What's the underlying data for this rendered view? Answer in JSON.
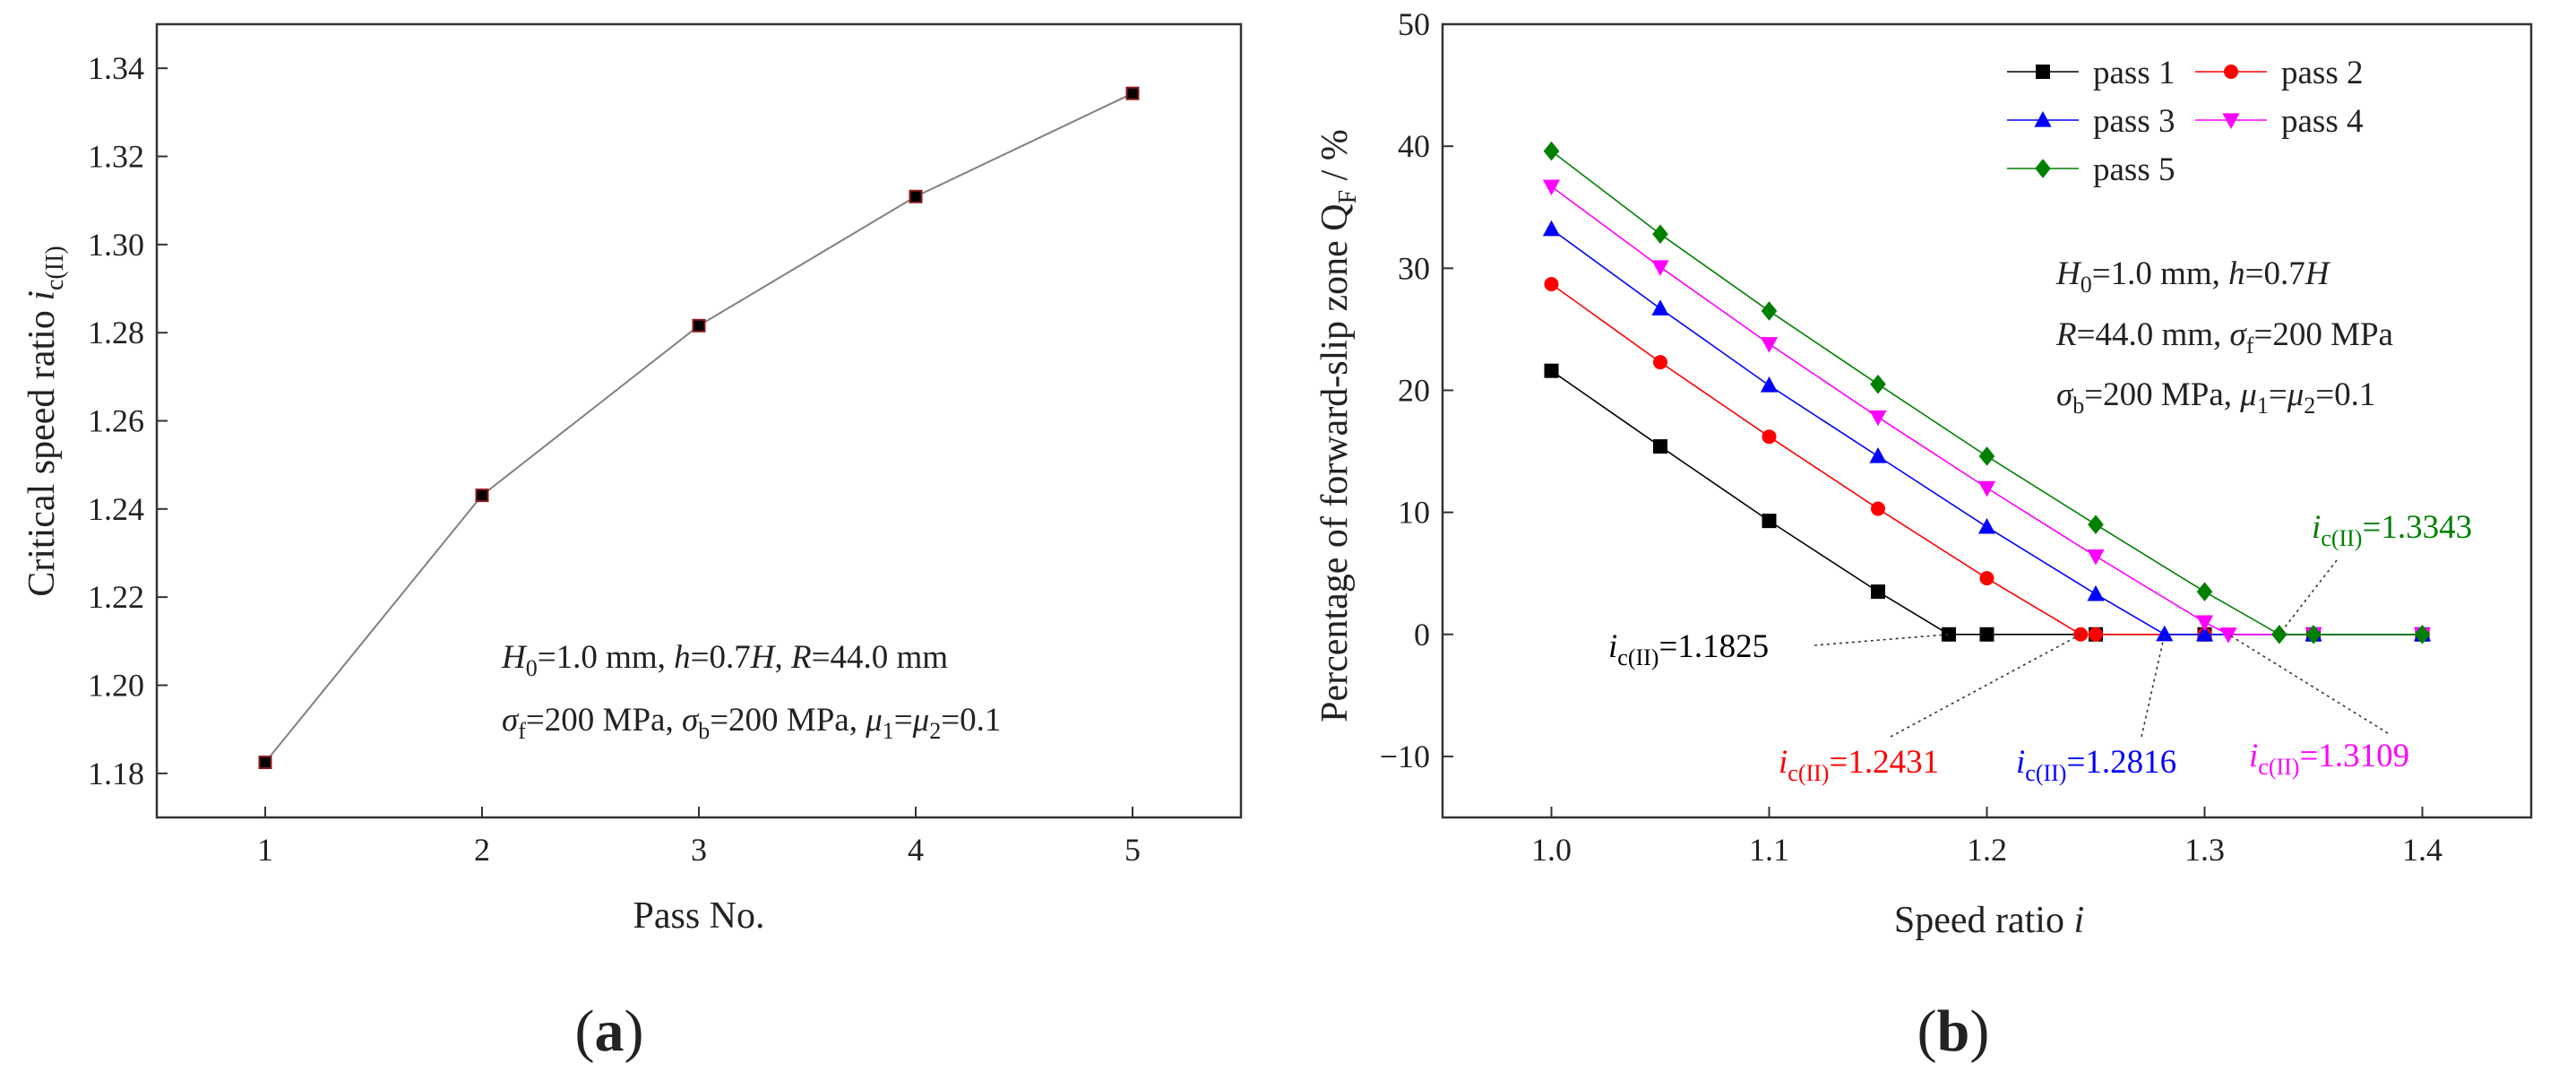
{
  "colors": {
    "pass1": "#000000",
    "pass2": "#ff0000",
    "pass3": "#0000ff",
    "pass4": "#ff00ff",
    "pass5": "#008000",
    "line": "#808080"
  },
  "chart_data": [
    {
      "id": "a",
      "panel_label_open": "(",
      "panel_label_letter": "a",
      "panel_label_close": ")",
      "type": "line",
      "xlabel": "Pass No.",
      "ylabel_main": "Critical speed ratio ",
      "ylabel_ital": "i",
      "ylabel_sub": "c(II)",
      "xlim": [
        0.5,
        5.5
      ],
      "ylim": [
        1.17,
        1.35
      ],
      "xticks": [
        1,
        2,
        3,
        4,
        5
      ],
      "yticks": [
        1.18,
        1.2,
        1.22,
        1.24,
        1.26,
        1.28,
        1.3,
        1.32,
        1.34
      ],
      "ytick_labels": [
        "1.18",
        "1.20",
        "1.22",
        "1.24",
        "1.26",
        "1.28",
        "1.30",
        "1.32",
        "1.34"
      ],
      "x": [
        1,
        2,
        3,
        4,
        5
      ],
      "y": [
        1.1825,
        1.2431,
        1.2816,
        1.3109,
        1.3343
      ],
      "params_line1": [
        {
          "t": "H",
          "it": true
        },
        {
          "t": "0",
          "sub": true
        },
        {
          "t": "=1.0 mm, "
        },
        {
          "t": "h",
          "it": true
        },
        {
          "t": "=0.7"
        },
        {
          "t": "H",
          "it": true
        },
        {
          "t": ", "
        },
        {
          "t": "R",
          "it": true
        },
        {
          "t": "=44.0 mm"
        }
      ],
      "params_line2": [
        {
          "t": "σ",
          "it": true
        },
        {
          "t": "f",
          "sub": true
        },
        {
          "t": "=200 MPa, "
        },
        {
          "t": "σ",
          "it": true
        },
        {
          "t": "b",
          "sub": true
        },
        {
          "t": "=200 MPa, "
        },
        {
          "t": "μ",
          "it": true
        },
        {
          "t": "1",
          "sub": true
        },
        {
          "t": "="
        },
        {
          "t": "μ",
          "it": true
        },
        {
          "t": "2",
          "sub": true
        },
        {
          "t": "=0.1"
        }
      ]
    },
    {
      "id": "b",
      "panel_label_open": "(",
      "panel_label_letter": "b",
      "panel_label_close": ")",
      "type": "line",
      "xlabel_main": "Speed ratio ",
      "xlabel_ital": "i",
      "ylabel_main": "Percentage of forward-slip zone Q",
      "ylabel_sub": "F",
      "ylabel_tail": " / %",
      "xlim": [
        0.95,
        1.45
      ],
      "ylim": [
        -15,
        50
      ],
      "xticks": [
        1.0,
        1.1,
        1.2,
        1.3,
        1.4
      ],
      "xtick_labels": [
        "1.0",
        "1.1",
        "1.2",
        "1.3",
        "1.4"
      ],
      "yticks": [
        -10,
        0,
        10,
        20,
        30,
        40,
        50
      ],
      "ytick_labels": [
        "−10",
        "0",
        "10",
        "20",
        "30",
        "40",
        "50"
      ],
      "series": [
        {
          "name": "pass 1",
          "color_key": "pass1",
          "marker": "square",
          "x": [
            1.0,
            1.05,
            1.1,
            1.15,
            1.1825,
            1.2,
            1.25,
            1.3,
            1.35,
            1.4
          ],
          "y": [
            21.6,
            15.4,
            9.3,
            3.5,
            0,
            0,
            0,
            0,
            0,
            0
          ]
        },
        {
          "name": "pass 2",
          "color_key": "pass2",
          "marker": "circle",
          "x": [
            1.0,
            1.05,
            1.1,
            1.15,
            1.2,
            1.2431,
            1.25,
            1.3,
            1.35,
            1.4
          ],
          "y": [
            28.7,
            22.3,
            16.2,
            10.3,
            4.6,
            0,
            0,
            0,
            0,
            0
          ]
        },
        {
          "name": "pass 3",
          "color_key": "pass3",
          "marker": "triangle-up",
          "x": [
            1.0,
            1.05,
            1.1,
            1.15,
            1.2,
            1.25,
            1.2816,
            1.3,
            1.35,
            1.4
          ],
          "y": [
            33.2,
            26.7,
            20.4,
            14.6,
            8.8,
            3.3,
            0,
            0,
            0,
            0
          ]
        },
        {
          "name": "pass 4",
          "color_key": "pass4",
          "marker": "triangle-down",
          "x": [
            1.0,
            1.05,
            1.1,
            1.15,
            1.2,
            1.25,
            1.3,
            1.3109,
            1.35,
            1.4
          ],
          "y": [
            36.7,
            30.1,
            23.8,
            17.8,
            12.0,
            6.4,
            1.0,
            0,
            0,
            0
          ]
        },
        {
          "name": "pass 5",
          "color_key": "pass5",
          "marker": "diamond",
          "x": [
            1.0,
            1.05,
            1.1,
            1.15,
            1.2,
            1.25,
            1.3,
            1.3343,
            1.35,
            1.4
          ],
          "y": [
            39.6,
            32.8,
            26.5,
            20.5,
            14.6,
            9.0,
            3.5,
            0,
            0,
            0
          ]
        }
      ],
      "params_line1": [
        {
          "t": "H",
          "it": true
        },
        {
          "t": "0",
          "sub": true
        },
        {
          "t": "=1.0 mm, "
        },
        {
          "t": "h",
          "it": true
        },
        {
          "t": "=0.7"
        },
        {
          "t": "H",
          "it": true
        }
      ],
      "params_line2": [
        {
          "t": "R",
          "it": true
        },
        {
          "t": "=44.0 mm, "
        },
        {
          "t": "σ",
          "it": true
        },
        {
          "t": "f",
          "sub": true
        },
        {
          "t": "=200 MPa"
        }
      ],
      "params_line3": [
        {
          "t": "σ",
          "it": true
        },
        {
          "t": "b",
          "sub": true
        },
        {
          "t": "=200 MPa, "
        },
        {
          "t": "μ",
          "it": true
        },
        {
          "t": "1",
          "sub": true
        },
        {
          "t": "="
        },
        {
          "t": "μ",
          "it": true
        },
        {
          "t": "2",
          "sub": true
        },
        {
          "t": "=0.1"
        }
      ],
      "annotations": [
        {
          "i_sym": "i",
          "sub": "c(II)",
          "value": "=1.1825",
          "color_key": "pass1",
          "point": [
            1.1825,
            0
          ]
        },
        {
          "i_sym": "i",
          "sub": "c(II)",
          "value": "=1.2431",
          "color_key": "pass2",
          "point": [
            1.2431,
            0
          ]
        },
        {
          "i_sym": "i",
          "sub": "c(II)",
          "value": "=1.2816",
          "color_key": "pass3",
          "point": [
            1.2816,
            0
          ]
        },
        {
          "i_sym": "i",
          "sub": "c(II)",
          "value": "=1.3109",
          "color_key": "pass4",
          "point": [
            1.3109,
            0
          ]
        },
        {
          "i_sym": "i",
          "sub": "c(II)",
          "value": "=1.3343",
          "color_key": "pass5",
          "point": [
            1.3343,
            0
          ]
        }
      ]
    }
  ]
}
